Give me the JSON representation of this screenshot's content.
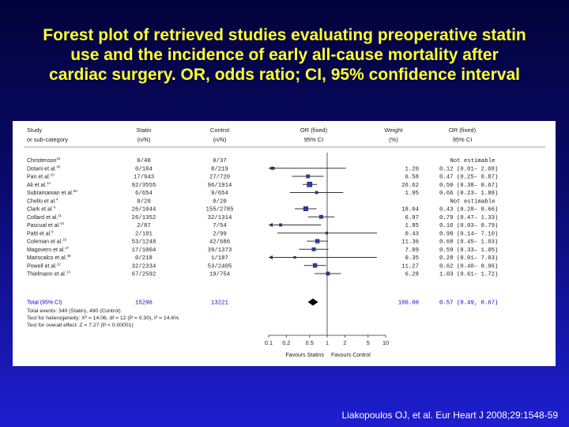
{
  "title_lines": [
    "Forest plot of retrieved studies evaluating preoperative statin",
    "use and the incidence of early all-cause mortality after",
    "cardiac surgery. OR, odds ratio; CI, 95% confidence interval"
  ],
  "citation": "Liakopoulos OJ, et al. Eur Heart J 2008;29:1548-59",
  "colors": {
    "title": "#ffff33",
    "background_top": "#02023a",
    "background_bottom": "#1e1ed0",
    "total_row": "#0000cc",
    "marker": "#2a3fa8",
    "panel": "#ffffff"
  },
  "chart_data": {
    "type": "forest",
    "headers": {
      "study": [
        "Study",
        "or sub-category"
      ],
      "statin": [
        "Statin",
        "(n/N)"
      ],
      "control": [
        "Control",
        "(n/N)"
      ],
      "or_plot": [
        "OR (fixed)",
        "95% CI"
      ],
      "weight": [
        "Weight",
        "(%)"
      ],
      "or_text": [
        "OR (fixed)",
        "95% CI"
      ]
    },
    "studies": [
      {
        "name": "Christenson",
        "sup": "15",
        "statin": "0/40",
        "control": "0/37",
        "weight": "",
        "or_text": "Not estimable",
        "or": null,
        "lo": null,
        "hi": null
      },
      {
        "name": "Dotani et al.",
        "sup": "45",
        "statin": "0/104",
        "control": "8/219",
        "weight": "1.20",
        "or_text": "0.12 (0.01– 2.08)",
        "or": 0.12,
        "lo": 0.01,
        "hi": 2.08
      },
      {
        "name": "Pan et al.",
        "sup": "10",
        "statin": "17/943",
        "control": "27/720",
        "weight": "6.58",
        "or_text": "0.47 (0.25– 0.87)",
        "or": 0.47,
        "lo": 0.25,
        "hi": 0.87
      },
      {
        "name": "Ali et al.",
        "sup": "14",
        "statin": "92/3555",
        "control": "96/1914",
        "weight": "26.62",
        "or_text": "0.50 (0.38– 0.67)",
        "or": 0.5,
        "lo": 0.38,
        "hi": 0.67
      },
      {
        "name": "Subramanian et al.",
        "sup": "50",
        "statin": "6/654",
        "control": "9/654",
        "weight": "1.95",
        "or_text": "0.66 (0.23– 1.88)",
        "or": 0.66,
        "lo": 0.23,
        "hi": 1.88
      },
      {
        "name": "Chello et al.",
        "sup": "4",
        "statin": "0/20",
        "control": "0/20",
        "weight": "",
        "or_text": "Not estimable",
        "or": null,
        "lo": null,
        "hi": null
      },
      {
        "name": "Clark et al.",
        "sup": "9",
        "statin": "26/1044",
        "control": "155/2785",
        "weight": "18.04",
        "or_text": "0.43 (0.28– 0.66)",
        "or": 0.43,
        "lo": 0.28,
        "hi": 0.66
      },
      {
        "name": "Collard et al.",
        "sup": "11",
        "statin": "26/1352",
        "control": "32/1314",
        "weight": "6.97",
        "or_text": "0.79 (0.47– 1.33)",
        "or": 0.79,
        "lo": 0.47,
        "hi": 1.33
      },
      {
        "name": "Pascual et al.",
        "sup": "44",
        "statin": "2/87",
        "control": "7/54",
        "weight": "1.85",
        "or_text": "0.16 (0.03– 0.79)",
        "or": 0.16,
        "lo": 0.03,
        "hi": 0.79
      },
      {
        "name": "Patti et al.",
        "sup": "8",
        "statin": "2/101",
        "control": "2/99",
        "weight": "0.43",
        "or_text": "0.98 (0.14– 7.10)",
        "or": 0.98,
        "lo": 0.14,
        "hi": 7.1
      },
      {
        "name": "Coleman et al.",
        "sup": "16",
        "statin": "53/1248",
        "control": "42/686",
        "weight": "11.36",
        "or_text": "0.68 (0.45– 1.03)",
        "or": 0.68,
        "lo": 0.45,
        "hi": 1.03
      },
      {
        "name": "Magovern et al.",
        "sup": "47",
        "statin": "17/1004",
        "control": "39/1373",
        "weight": "7.09",
        "or_text": "0.59 (0.33– 1.05)",
        "or": 0.59,
        "lo": 0.33,
        "hi": 1.05
      },
      {
        "name": "Mariscalco et al.",
        "sup": "48",
        "statin": "0/218",
        "control": "1/187",
        "weight": "0.35",
        "or_text": "0.28 (0.01– 7.03)",
        "or": 0.28,
        "lo": 0.01,
        "hi": 7.03
      },
      {
        "name": "Powell et al.",
        "sup": "12",
        "statin": "32/2334",
        "control": "53/2405",
        "weight": "11.27",
        "or_text": "0.62 (0.40– 0.96)",
        "or": 0.62,
        "lo": 0.4,
        "hi": 0.96
      },
      {
        "name": "Thielmann et al.",
        "sup": "13",
        "statin": "67/2592",
        "control": "19/754",
        "weight": "6.28",
        "or_text": "1.03 (0.61– 1.72)",
        "or": 1.03,
        "lo": 0.61,
        "hi": 1.72
      }
    ],
    "total": {
      "label": "Total (95% CI)",
      "statin": "15296",
      "control": "13221",
      "weight": "100.00",
      "or_text": "0.57 (0.49, 0.67)",
      "or": 0.57,
      "lo": 0.49,
      "hi": 0.67
    },
    "footnotes": [
      "Total events: 340 (Statin), 490 (Control)",
      "Test for heterogeneity: X² = 14.06, df = 12 (P = 0.30), I² = 14.6%",
      "Test for overall effect: Z = 7.27 (P < 0.00001)"
    ],
    "x_scale": "log",
    "xlim": [
      0.1,
      10
    ],
    "ticks": [
      0.1,
      0.2,
      0.5,
      1,
      2,
      5,
      10
    ],
    "tick_labels": [
      "0.1",
      "0.2",
      "0.5",
      "1",
      "2",
      "5",
      "10"
    ],
    "favours_left": "Favours Statins",
    "favours_right": "Favours Control",
    "grid": false
  }
}
